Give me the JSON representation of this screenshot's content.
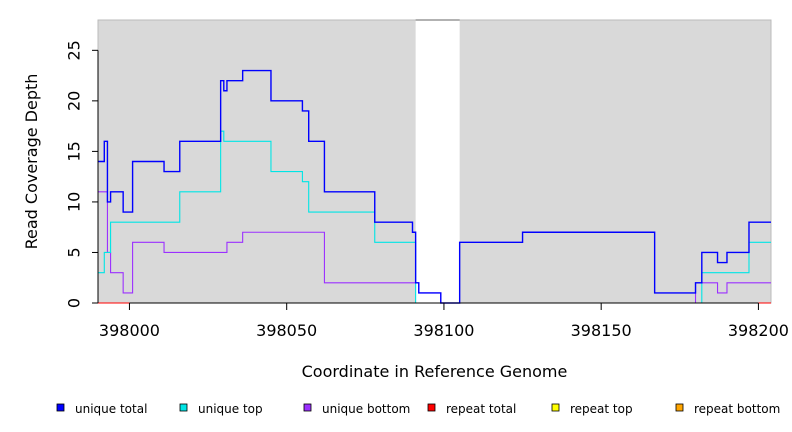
{
  "chart_data": {
    "type": "line",
    "style": "step",
    "xlabel": "Coordinate in Reference Genome",
    "ylabel": "Read Coverage Depth",
    "xlim": [
      397990,
      398204
    ],
    "ylim": [
      0,
      28
    ],
    "x_ticks": [
      398000,
      398050,
      398100,
      398150,
      398200
    ],
    "y_ticks": [
      0,
      5,
      10,
      15,
      20,
      25
    ],
    "background_color": "#d9d9d9",
    "gap_regions": [
      [
        398091,
        398105
      ]
    ],
    "legend_position": "bottom",
    "series": [
      {
        "name": "unique total",
        "color": "#0000ff",
        "x": [
          397990,
          397992,
          397993,
          397994,
          397995,
          397998,
          398001,
          398011,
          398016,
          398029,
          398030,
          398031,
          398036,
          398045,
          398055,
          398057,
          398062,
          398078,
          398090,
          398091,
          398092,
          398099,
          398105,
          398125,
          398167,
          398180,
          398182,
          398187,
          398190,
          398197,
          398204
        ],
        "y": [
          14,
          16,
          10,
          11,
          11,
          9,
          14,
          13,
          16,
          22,
          21,
          22,
          23,
          20,
          19,
          16,
          11,
          8,
          7,
          2,
          1,
          0,
          6,
          7,
          1,
          2,
          5,
          4,
          5,
          8,
          8
        ]
      },
      {
        "name": "unique top",
        "color": "#00e5e5",
        "x": [
          397990,
          397992,
          397994,
          398016,
          398029,
          398030,
          398045,
          398055,
          398057,
          398078,
          398090,
          398091,
          398105,
          398182,
          398197,
          398204
        ],
        "y": [
          3,
          5,
          8,
          11,
          17,
          16,
          13,
          12,
          9,
          6,
          6,
          0,
          0,
          3,
          6,
          6
        ]
      },
      {
        "name": "unique bottom",
        "color": "#9b30ff",
        "x": [
          397990,
          397993,
          397994,
          397998,
          398001,
          398011,
          398016,
          398026,
          398031,
          398036,
          398062,
          398092,
          398099,
          398105,
          398180,
          398187,
          398190,
          398204
        ],
        "y": [
          11,
          5,
          3,
          1,
          6,
          5,
          5,
          5,
          6,
          7,
          2,
          1,
          0,
          0,
          2,
          1,
          2,
          2
        ]
      },
      {
        "name": "repeat total",
        "color": "#ff0000",
        "x": [
          397990,
          398204
        ],
        "y": [
          0,
          0
        ]
      },
      {
        "name": "repeat top",
        "color": "#ffff00",
        "x": [
          397990,
          398204
        ],
        "y": [
          0,
          0
        ]
      },
      {
        "name": "repeat bottom",
        "color": "#ffa500",
        "x": [
          397990,
          398204
        ],
        "y": [
          0,
          0
        ]
      }
    ]
  }
}
